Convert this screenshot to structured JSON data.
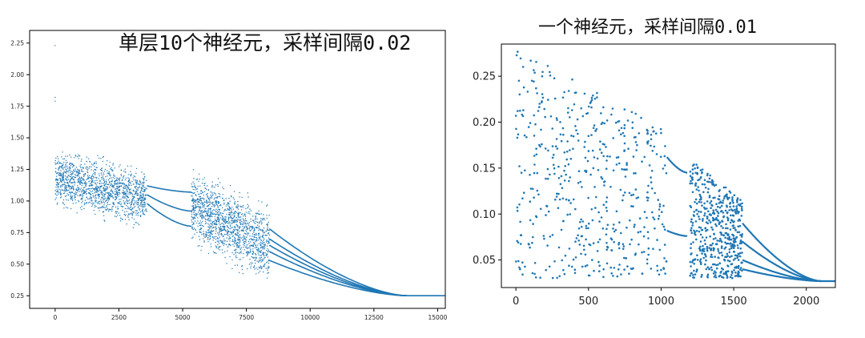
{
  "chart_data": [
    {
      "type": "scatter",
      "title": "单层10个神经元，采样间隔0.02",
      "xlabel": "",
      "ylabel": "",
      "xlim": [
        -1000,
        15300
      ],
      "ylim": [
        0.15,
        2.35
      ],
      "xticks": [
        0,
        2500,
        5000,
        7500,
        10000,
        12500,
        15000
      ],
      "yticks": [
        0.25,
        0.5,
        0.75,
        1.0,
        1.25,
        1.5,
        1.75,
        2.0,
        2.25
      ],
      "xtick_labels": [
        "0",
        "2500",
        "5000",
        "7500",
        "10000",
        "12500",
        "15000"
      ],
      "ytick_labels": [
        "0.25",
        "0.50",
        "0.75",
        "1.00",
        "1.25",
        "1.50",
        "1.75",
        "2.00",
        "2.25"
      ],
      "point_color": "#1f77b4",
      "grid": false,
      "series": [
        {
          "kind": "scatter_cloud",
          "x_range": [
            0,
            3600
          ],
          "y_center": [
            1.18,
            1.02
          ],
          "y_spread": 0.17
        },
        {
          "kind": "branches",
          "x_range": [
            3600,
            5350
          ],
          "start": [
            1.05,
            1.12,
            0.98
          ],
          "end": [
            0.92,
            1.07,
            0.8
          ]
        },
        {
          "kind": "scatter_cloud",
          "x_range": [
            5350,
            8400
          ],
          "y_center": [
            0.95,
            0.65
          ],
          "y_spread": 0.22
        },
        {
          "kind": "branches",
          "x_range": [
            8400,
            13800
          ],
          "start": [
            0.65,
            0.78,
            0.7,
            0.6,
            0.53
          ],
          "end": [
            0.25,
            0.25,
            0.25,
            0.25,
            0.25
          ]
        },
        {
          "kind": "line",
          "x": [
            13800,
            15300
          ],
          "y": [
            0.25,
            0.25
          ]
        },
        {
          "kind": "outliers",
          "x": [
            0,
            0,
            0
          ],
          "y": [
            2.23,
            1.82,
            1.79
          ]
        }
      ]
    },
    {
      "type": "scatter",
      "title": "一个神经元，采样间隔0.01",
      "xlabel": "",
      "ylabel": "",
      "xlim": [
        -100,
        2200
      ],
      "ylim": [
        0.02,
        0.285
      ],
      "xticks": [
        0,
        500,
        1000,
        1500,
        2000
      ],
      "yticks": [
        0.05,
        0.1,
        0.15,
        0.2,
        0.25
      ],
      "xtick_labels": [
        "0",
        "500",
        "1000",
        "1500",
        "2000"
      ],
      "ytick_labels": [
        "0.05",
        "0.10",
        "0.15",
        "0.20",
        "0.25"
      ],
      "point_color": "#1f77b4",
      "grid": false,
      "series": [
        {
          "kind": "scatter_cloud",
          "x_range": [
            0,
            1040
          ],
          "y_range": [
            0.03,
            0.28
          ]
        },
        {
          "kind": "branches",
          "x_range": [
            1040,
            1180
          ],
          "start": [
            0.162,
            0.082
          ],
          "end": [
            0.145,
            0.076
          ]
        },
        {
          "kind": "scatter_cloud",
          "x_range": [
            1200,
            1560
          ],
          "y_range": [
            0.03,
            0.16
          ]
        },
        {
          "kind": "branches",
          "x_range": [
            1560,
            2100
          ],
          "start": [
            0.07,
            0.05,
            0.09,
            0.04
          ],
          "end": [
            0.027,
            0.027,
            0.027,
            0.027
          ]
        },
        {
          "kind": "line",
          "x": [
            2100,
            2200
          ],
          "y": [
            0.027,
            0.027
          ]
        }
      ]
    }
  ]
}
